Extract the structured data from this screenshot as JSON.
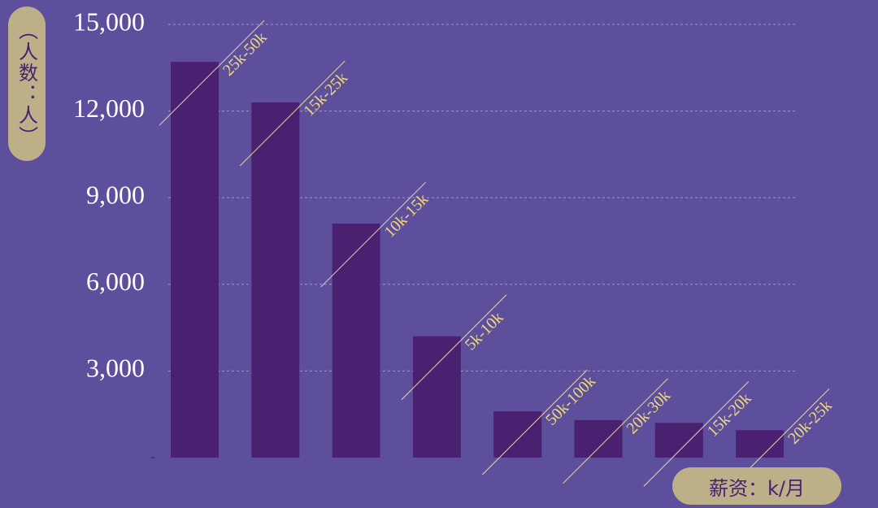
{
  "chart_data": {
    "type": "bar",
    "y_label": "（人数：人）",
    "x_label": "薪资：k/月",
    "categories": [
      "25k-50k",
      "15k-25k",
      "10k-15k",
      "5k-10k",
      "50k-100k",
      "20k-30k",
      "15k-20k",
      "20k-25k"
    ],
    "values": [
      13700,
      12300,
      8100,
      4200,
      1600,
      1300,
      1200,
      950
    ],
    "color": "#4a2071",
    "ylim": [
      0,
      15000
    ],
    "yticks": [
      {
        "value": 3000,
        "label": "3,000"
      },
      {
        "value": 6000,
        "label": "6,000"
      },
      {
        "value": 9000,
        "label": "9,000"
      },
      {
        "value": 12000,
        "label": "12,000"
      },
      {
        "value": 15000,
        "label": "15,000"
      }
    ],
    "grid": true
  }
}
